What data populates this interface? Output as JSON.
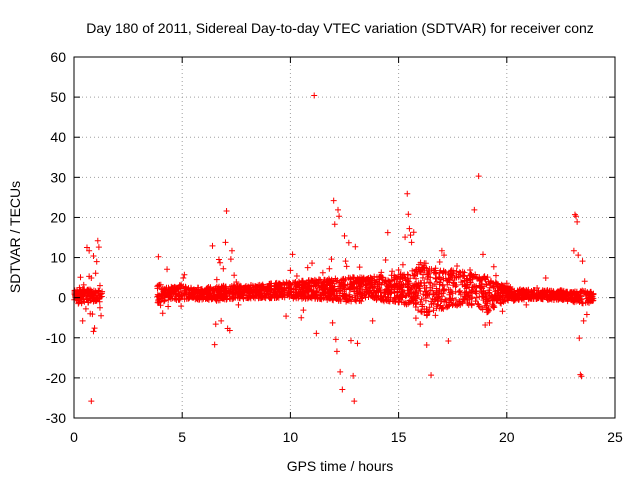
{
  "chart_data": {
    "type": "scatter",
    "title": "Day 180 of 2011, Sidereal Day-to-day VTEC variation (SDTVAR) for receiver conz",
    "xlabel": "GPS time / hours",
    "ylabel": "SDTVAR / TECUs",
    "xlim": [
      0,
      25
    ],
    "ylim": [
      -30,
      60
    ],
    "xticks": [
      "0",
      "5",
      "10",
      "15",
      "20",
      "25"
    ],
    "yticks": [
      "-30",
      "-20",
      "-10",
      "0",
      "10",
      "20",
      "30",
      "40",
      "50",
      "60"
    ],
    "grid": true,
    "marker": "+",
    "color": "#ff0000",
    "series": [
      {
        "name": "SDTVAR",
        "points": [
          [
            0.05,
            0.2
          ],
          [
            0.1,
            -0.5
          ],
          [
            0.15,
            1.5
          ],
          [
            0.2,
            -1.5
          ],
          [
            0.25,
            2.5
          ],
          [
            0.3,
            5.1
          ],
          [
            0.35,
            -0.9
          ],
          [
            0.4,
            -5.8
          ],
          [
            0.45,
            3.2
          ],
          [
            0.5,
            1.0
          ],
          [
            0.55,
            -2.8
          ],
          [
            0.6,
            0.6
          ],
          [
            0.65,
            -1.2
          ],
          [
            0.7,
            5.3
          ],
          [
            0.75,
            -4.0
          ],
          [
            0.8,
            4.9
          ],
          [
            0.85,
            -4.1
          ],
          [
            0.9,
            -8.4
          ],
          [
            0.95,
            -7.6
          ],
          [
            1.0,
            6.1
          ],
          [
            0.6,
            12.5
          ],
          [
            0.7,
            11.7
          ],
          [
            0.8,
            -25.8
          ],
          [
            0.9,
            10.4
          ],
          [
            1.05,
            9.0
          ],
          [
            1.1,
            14.2
          ],
          [
            1.15,
            12.6
          ],
          [
            1.2,
            -2.5
          ],
          [
            1.25,
            -4.5
          ],
          [
            1.2,
            3.0
          ],
          [
            3.9,
            10.2
          ],
          [
            3.95,
            3.2
          ],
          [
            4.0,
            -1.9
          ],
          [
            4.05,
            2.0
          ],
          [
            4.1,
            -3.9
          ],
          [
            4.2,
            1.5
          ],
          [
            4.3,
            7.1
          ],
          [
            4.35,
            -2.2
          ],
          [
            4.5,
            0.9
          ],
          [
            4.7,
            1.8
          ],
          [
            4.9,
            2.3
          ],
          [
            4.95,
            -2.1
          ],
          [
            5.05,
            4.9
          ],
          [
            5.1,
            5.7
          ],
          [
            6.4,
            12.9
          ],
          [
            6.5,
            -11.7
          ],
          [
            6.55,
            -6.6
          ],
          [
            6.6,
            4.5
          ],
          [
            6.7,
            9.5
          ],
          [
            6.75,
            8.7
          ],
          [
            6.8,
            -5.8
          ],
          [
            6.9,
            7.2
          ],
          [
            7.0,
            13.8
          ],
          [
            7.05,
            21.6
          ],
          [
            7.1,
            -7.7
          ],
          [
            7.2,
            -8.2
          ],
          [
            7.25,
            9.6
          ],
          [
            7.3,
            11.7
          ],
          [
            7.4,
            5.6
          ],
          [
            7.5,
            3.9
          ],
          [
            7.6,
            -1.8
          ],
          [
            8.0,
            2.4
          ],
          [
            8.5,
            1.9
          ],
          [
            9.0,
            2.7
          ],
          [
            9.5,
            3.0
          ],
          [
            9.8,
            -4.6
          ],
          [
            10.0,
            6.8
          ],
          [
            10.1,
            10.8
          ],
          [
            10.3,
            5.4
          ],
          [
            10.5,
            -5.0
          ],
          [
            10.6,
            -3.1
          ],
          [
            10.8,
            7.5
          ],
          [
            11.0,
            8.6
          ],
          [
            11.1,
            50.4
          ],
          [
            11.2,
            -8.9
          ],
          [
            11.3,
            3.1
          ],
          [
            11.5,
            6.2
          ],
          [
            11.8,
            7.2
          ],
          [
            11.9,
            9.6
          ],
          [
            11.95,
            -6.3
          ],
          [
            12.0,
            24.2
          ],
          [
            12.05,
            18.3
          ],
          [
            12.1,
            -10.4
          ],
          [
            12.15,
            -13.4
          ],
          [
            12.2,
            21.9
          ],
          [
            12.25,
            20.3
          ],
          [
            12.3,
            -18.5
          ],
          [
            12.4,
            -22.9
          ],
          [
            12.5,
            15.4
          ],
          [
            12.55,
            9.1
          ],
          [
            12.6,
            7.8
          ],
          [
            12.7,
            13.7
          ],
          [
            12.8,
            -10.7
          ],
          [
            12.9,
            -19.5
          ],
          [
            12.95,
            -25.8
          ],
          [
            13.0,
            12.7
          ],
          [
            13.1,
            -11.4
          ],
          [
            13.2,
            7.6
          ],
          [
            13.5,
            4.4
          ],
          [
            13.8,
            -5.8
          ],
          [
            14.0,
            5.1
          ],
          [
            14.2,
            6.3
          ],
          [
            14.4,
            9.4
          ],
          [
            14.5,
            16.2
          ],
          [
            14.7,
            6.6
          ],
          [
            15.0,
            6.9
          ],
          [
            15.2,
            8.2
          ],
          [
            15.3,
            15.1
          ],
          [
            15.4,
            25.9
          ],
          [
            15.45,
            20.8
          ],
          [
            15.5,
            17.2
          ],
          [
            15.55,
            15.6
          ],
          [
            15.6,
            13.8
          ],
          [
            15.7,
            16.3
          ],
          [
            15.8,
            -5.1
          ],
          [
            15.9,
            -3.1
          ],
          [
            16.0,
            -6.6
          ],
          [
            16.1,
            7.4
          ],
          [
            16.3,
            -11.8
          ],
          [
            16.5,
            -19.3
          ],
          [
            16.7,
            -4.4
          ],
          [
            16.9,
            8.9
          ],
          [
            17.0,
            11.7
          ],
          [
            17.1,
            10.6
          ],
          [
            17.3,
            -10.8
          ],
          [
            17.5,
            6.2
          ],
          [
            17.7,
            7.9
          ],
          [
            18.0,
            5.5
          ],
          [
            18.3,
            6.9
          ],
          [
            18.5,
            21.9
          ],
          [
            18.7,
            30.3
          ],
          [
            18.9,
            10.8
          ],
          [
            19.0,
            -6.8
          ],
          [
            19.2,
            -6.3
          ],
          [
            19.4,
            7.7
          ],
          [
            19.5,
            5.5
          ],
          [
            19.8,
            -3.4
          ],
          [
            20.0,
            3.6
          ],
          [
            20.2,
            0.5
          ],
          [
            20.5,
            1.8
          ],
          [
            20.9,
            -1.8
          ],
          [
            21.0,
            1.2
          ],
          [
            21.4,
            2.4
          ],
          [
            21.8,
            4.9
          ],
          [
            22.0,
            0.4
          ],
          [
            22.5,
            1.9
          ],
          [
            22.8,
            1.0
          ],
          [
            23.0,
            -0.6
          ],
          [
            23.1,
            11.7
          ],
          [
            23.15,
            20.7
          ],
          [
            23.2,
            20.3
          ],
          [
            23.25,
            18.9
          ],
          [
            23.3,
            10.6
          ],
          [
            23.35,
            -10.1
          ],
          [
            23.4,
            -19.2
          ],
          [
            23.45,
            -19.6
          ],
          [
            23.5,
            9.1
          ],
          [
            23.55,
            -5.8
          ],
          [
            23.6,
            4.1
          ],
          [
            23.7,
            -4.2
          ],
          [
            23.8,
            -1.3
          ],
          [
            23.9,
            -0.2
          ]
        ],
        "dense_band": [
          [
            0.0,
            -0.8,
            1.8
          ],
          [
            0.4,
            -1.5,
            2.2
          ],
          [
            0.8,
            -1.2,
            2.0
          ],
          [
            1.2,
            -1.0,
            1.8
          ],
          [
            3.9,
            -1.5,
            3.5
          ],
          [
            4.3,
            -0.6,
            2.5
          ],
          [
            4.8,
            -0.6,
            3.6
          ],
          [
            5.2,
            -0.6,
            2.6
          ],
          [
            5.5,
            -0.5,
            2.5
          ],
          [
            6.0,
            -0.6,
            2.6
          ],
          [
            6.5,
            -0.8,
            2.8
          ],
          [
            7.0,
            -0.6,
            3.0
          ],
          [
            7.5,
            -0.4,
            3.0
          ],
          [
            8.0,
            -0.3,
            3.2
          ],
          [
            8.5,
            -0.2,
            3.4
          ],
          [
            9.0,
            -0.2,
            3.6
          ],
          [
            9.5,
            -0.1,
            3.8
          ],
          [
            10.0,
            -0.2,
            4.0
          ],
          [
            10.5,
            -0.3,
            4.2
          ],
          [
            11.0,
            -0.4,
            4.6
          ],
          [
            11.5,
            -0.5,
            4.6
          ],
          [
            12.0,
            -0.8,
            4.8
          ],
          [
            12.5,
            -1.0,
            5.0
          ],
          [
            13.0,
            -1.0,
            5.2
          ],
          [
            13.5,
            -0.8,
            5.2
          ],
          [
            14.0,
            -0.8,
            5.4
          ],
          [
            14.5,
            -1.0,
            5.6
          ],
          [
            15.0,
            -1.2,
            6.0
          ],
          [
            15.5,
            -2.0,
            6.2
          ],
          [
            16.0,
            -4.0,
            8.8
          ],
          [
            16.3,
            -4.5,
            9.2
          ],
          [
            16.6,
            -3.5,
            8.5
          ],
          [
            17.0,
            -3.0,
            8.0
          ],
          [
            17.5,
            -2.5,
            7.0
          ],
          [
            18.0,
            -2.0,
            6.5
          ],
          [
            18.5,
            -2.0,
            6.0
          ],
          [
            19.0,
            -4.5,
            5.5
          ],
          [
            19.5,
            -2.0,
            4.0
          ],
          [
            20.0,
            -1.0,
            3.0
          ],
          [
            20.5,
            -0.6,
            2.2
          ],
          [
            21.0,
            -0.4,
            2.0
          ],
          [
            21.5,
            -0.3,
            1.8
          ],
          [
            22.0,
            -0.6,
            2.0
          ],
          [
            22.5,
            -0.6,
            1.8
          ],
          [
            23.0,
            -1.2,
            1.6
          ],
          [
            23.5,
            -1.5,
            1.8
          ],
          [
            24.0,
            -1.0,
            1.4
          ]
        ],
        "gaps": [
          [
            1.3,
            3.85
          ]
        ]
      }
    ]
  }
}
